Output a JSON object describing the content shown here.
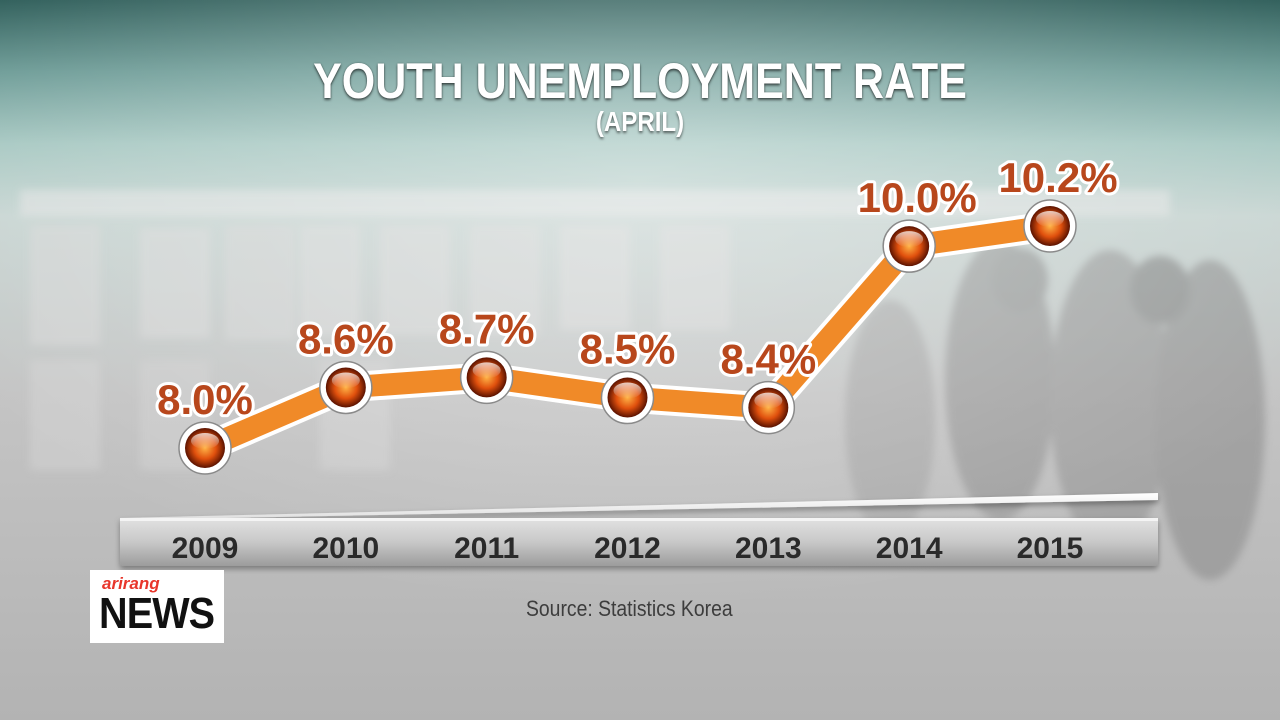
{
  "chart_data": {
    "type": "line",
    "title": "YOUTH UNEMPLOYMENT RATE",
    "subtitle": "(APRIL)",
    "categories": [
      "2009",
      "2010",
      "2011",
      "2012",
      "2013",
      "2014",
      "2015"
    ],
    "values": [
      8.0,
      8.6,
      8.7,
      8.5,
      8.4,
      10.0,
      10.2
    ],
    "value_labels": [
      "8.0%",
      "8.6%",
      "8.7%",
      "8.5%",
      "8.4%",
      "10.0%",
      "10.2%"
    ],
    "unit": "%",
    "grid": false,
    "colors": {
      "line": "#f08a28",
      "label": "#b8471c",
      "marker": "#e25a10"
    }
  },
  "source": "Source: Statistics Korea",
  "logo": {
    "brand": "arirang",
    "name": "NEWS"
  }
}
